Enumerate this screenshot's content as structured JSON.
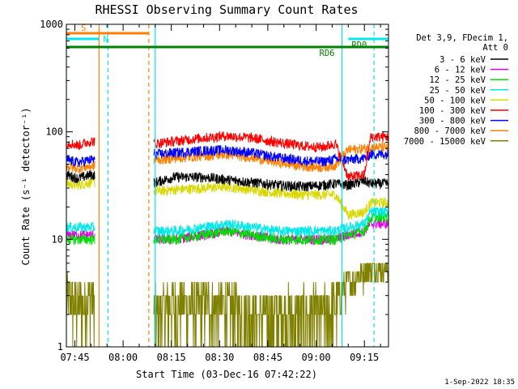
{
  "chart_data": {
    "type": "line",
    "title": "RHESSI Observing Summary Count Rates",
    "xlabel": "Start Time (03-Dec-16 07:42:22)",
    "ylabel": "Count Rate (s⁻¹ detector⁻¹)",
    "y_scale": "log",
    "ylim": [
      1,
      1000
    ],
    "xlim": [
      "07:42:22",
      "09:22:30"
    ],
    "x_ticks": [
      "07:45",
      "08:00",
      "08:15",
      "08:30",
      "08:45",
      "09:00",
      "09:15"
    ],
    "y_ticks": [
      "1",
      "10",
      "100",
      "1000"
    ],
    "legend_header": [
      "Det 3,9, FDecim 1,",
      "Att 0"
    ],
    "legend_placement": "right",
    "footer_timestamp": "1-Sep-2022 18:35",
    "data_gaps": [
      [
        "07:51:10",
        "08:09:30"
      ]
    ],
    "series": [
      {
        "name": "3 - 6 keV",
        "color": "#000000",
        "x": [
          "07:42:22",
          "07:46:00",
          "07:50:00",
          "08:10:00",
          "08:16:00",
          "08:25:00",
          "08:32:00",
          "08:40:00",
          "08:48:00",
          "08:56:00",
          "09:02:00",
          "09:06:00",
          "09:10:00",
          "09:15:00",
          "09:17:00"
        ],
        "values": [
          40,
          37,
          40,
          34,
          38,
          38,
          36,
          34,
          32,
          31,
          32,
          33,
          32,
          35,
          33
        ]
      },
      {
        "name": "6 - 12 keV",
        "color": "#e000e0",
        "x": [
          "07:42:22",
          "07:46:00",
          "07:50:00",
          "08:10:00",
          "08:16:00",
          "08:25:00",
          "08:32:00",
          "08:40:00",
          "08:48:00",
          "08:56:00",
          "09:02:00",
          "09:06:00",
          "09:10:00",
          "09:15:00",
          "09:17:00"
        ],
        "values": [
          11,
          11,
          11,
          10,
          10,
          11,
          12,
          11,
          10,
          10,
          10,
          10,
          11,
          12,
          14
        ]
      },
      {
        "name": "12 - 25 keV",
        "color": "#00e000",
        "x": [
          "07:42:22",
          "07:46:00",
          "07:50:00",
          "08:10:00",
          "08:16:00",
          "08:25:00",
          "08:32:00",
          "08:40:00",
          "08:48:00",
          "08:56:00",
          "09:02:00",
          "09:06:00",
          "09:10:00",
          "09:15:00",
          "09:17:00"
        ],
        "values": [
          10,
          10,
          10,
          10,
          10,
          11,
          12,
          11,
          10,
          10,
          10,
          10,
          11,
          12,
          16
        ]
      },
      {
        "name": "25 - 50 keV",
        "color": "#00e8e8",
        "x": [
          "07:42:22",
          "07:46:00",
          "07:50:00",
          "08:10:00",
          "08:16:00",
          "08:25:00",
          "08:32:00",
          "08:40:00",
          "08:48:00",
          "08:56:00",
          "09:02:00",
          "09:06:00",
          "09:10:00",
          "09:15:00",
          "09:17:00"
        ],
        "values": [
          13,
          13,
          13,
          12,
          12,
          13,
          14,
          13,
          12,
          12,
          12,
          12,
          13,
          14,
          18
        ]
      },
      {
        "name": "50 - 100 keV",
        "color": "#d8d800",
        "x": [
          "07:42:22",
          "07:46:00",
          "07:50:00",
          "08:10:00",
          "08:16:00",
          "08:25:00",
          "08:32:00",
          "08:40:00",
          "08:48:00",
          "08:56:00",
          "09:02:00",
          "09:06:00",
          "09:10:00",
          "09:15:00",
          "09:17:00"
        ],
        "values": [
          33,
          32,
          34,
          28,
          29,
          30,
          31,
          29,
          27,
          26,
          26,
          26,
          17,
          18,
          22
        ]
      },
      {
        "name": "100 - 300 keV",
        "color": "#ff0000",
        "x": [
          "07:42:22",
          "07:46:00",
          "07:50:00",
          "08:10:00",
          "08:16:00",
          "08:25:00",
          "08:32:00",
          "08:40:00",
          "08:48:00",
          "08:56:00",
          "09:02:00",
          "09:06:00",
          "09:10:00",
          "09:15:00",
          "09:17:00"
        ],
        "values": [
          80,
          75,
          82,
          78,
          82,
          88,
          92,
          88,
          80,
          74,
          72,
          78,
          38,
          40,
          90
        ]
      },
      {
        "name": "300 - 800 keV",
        "color": "#0000ff",
        "x": [
          "07:42:22",
          "07:46:00",
          "07:50:00",
          "08:10:00",
          "08:16:00",
          "08:25:00",
          "08:32:00",
          "08:40:00",
          "08:48:00",
          "08:56:00",
          "09:02:00",
          "09:06:00",
          "09:10:00",
          "09:15:00",
          "09:17:00"
        ],
        "values": [
          55,
          52,
          55,
          62,
          64,
          67,
          68,
          64,
          58,
          54,
          53,
          56,
          55,
          57,
          62
        ]
      },
      {
        "name": "800 - 7000 keV",
        "color": "#ff8000",
        "x": [
          "07:42:22",
          "07:46:00",
          "07:50:00",
          "08:10:00",
          "08:16:00",
          "08:25:00",
          "08:32:00",
          "08:40:00",
          "08:48:00",
          "08:56:00",
          "09:02:00",
          "09:06:00",
          "09:10:00",
          "09:15:00",
          "09:17:00"
        ],
        "values": [
          48,
          46,
          48,
          55,
          57,
          60,
          62,
          58,
          52,
          48,
          47,
          49,
          68,
          70,
          72
        ]
      },
      {
        "name": "7000 - 15000 keV",
        "color": "#808000",
        "x": [
          "07:42:22",
          "07:46:00",
          "07:50:00",
          "08:10:00",
          "08:16:00",
          "08:25:00",
          "08:32:00",
          "08:40:00",
          "08:48:00",
          "08:56:00",
          "09:02:00",
          "09:06:00",
          "09:10:00",
          "09:15:00",
          "09:17:00"
        ],
        "values": [
          3,
          2.5,
          3,
          2,
          2.5,
          2.5,
          2.5,
          2,
          2,
          2,
          2,
          2.5,
          4,
          5,
          5.5
        ]
      }
    ],
    "flag_bars": [
      {
        "label": "S",
        "color": "#ff8000",
        "start": "07:42:22",
        "end": "08:08:00",
        "row": "top"
      },
      {
        "label": "N",
        "color": "#00e8e8",
        "start": "07:42:22",
        "end": "07:52:30",
        "row": "second"
      },
      {
        "label": "RD0",
        "color": "#00e8e8",
        "start": "09:10:00",
        "end": "09:22:30",
        "row": "second"
      },
      {
        "label": "RD6",
        "color": "#008000",
        "start": "07:42:22",
        "end": "09:22:30",
        "row": "third"
      }
    ],
    "vertical_markers": [
      {
        "time": "07:42:22",
        "color": "#00e8e8",
        "style": "solid"
      },
      {
        "time": "07:52:30",
        "color": "#ff8000",
        "style": "solid"
      },
      {
        "time": "07:55:20",
        "color": "#00e8e8",
        "style": "dashed"
      },
      {
        "time": "08:08:00",
        "color": "#ff8000",
        "style": "dashed"
      },
      {
        "time": "08:10:00",
        "color": "#00e8e8",
        "style": "solid"
      },
      {
        "time": "09:08:00",
        "color": "#00e8e8",
        "style": "solid"
      },
      {
        "time": "09:18:00",
        "color": "#00e8e8",
        "style": "dashed"
      }
    ]
  }
}
